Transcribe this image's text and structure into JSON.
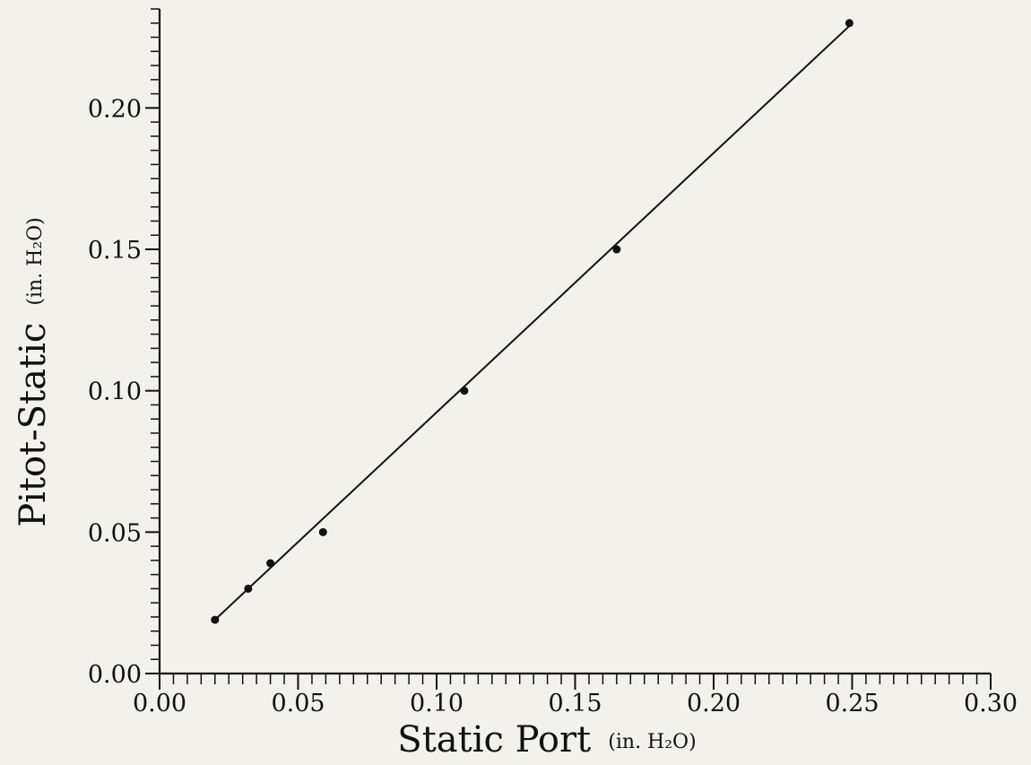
{
  "chart_data": {
    "type": "scatter",
    "title": "",
    "xlabel": "Static Port",
    "xlabel_unit": "(in. H₂O)",
    "ylabel": "Pitot-Static",
    "ylabel_unit": "(in. H₂O)",
    "xlim": [
      0.0,
      0.3
    ],
    "ylim": [
      0.0,
      0.235
    ],
    "x_ticks": [
      "0.00",
      "0.05",
      "0.10",
      "0.15",
      "0.20",
      "0.25",
      "0.30"
    ],
    "y_ticks": [
      "0.00",
      "0.05",
      "0.10",
      "0.15",
      "0.20"
    ],
    "grid": false,
    "legend": "none",
    "series": [
      {
        "x": [
          0.02,
          0.032,
          0.04,
          0.059,
          0.11,
          0.165,
          0.249
        ],
        "y": [
          0.019,
          0.03,
          0.039,
          0.05,
          0.1,
          0.15,
          0.23
        ]
      }
    ],
    "fit_line": {
      "x": [
        0.02,
        0.249
      ],
      "y": [
        0.019,
        0.229
      ]
    },
    "colors": {
      "ink": "#111111",
      "background": "#f3f1ec"
    }
  }
}
